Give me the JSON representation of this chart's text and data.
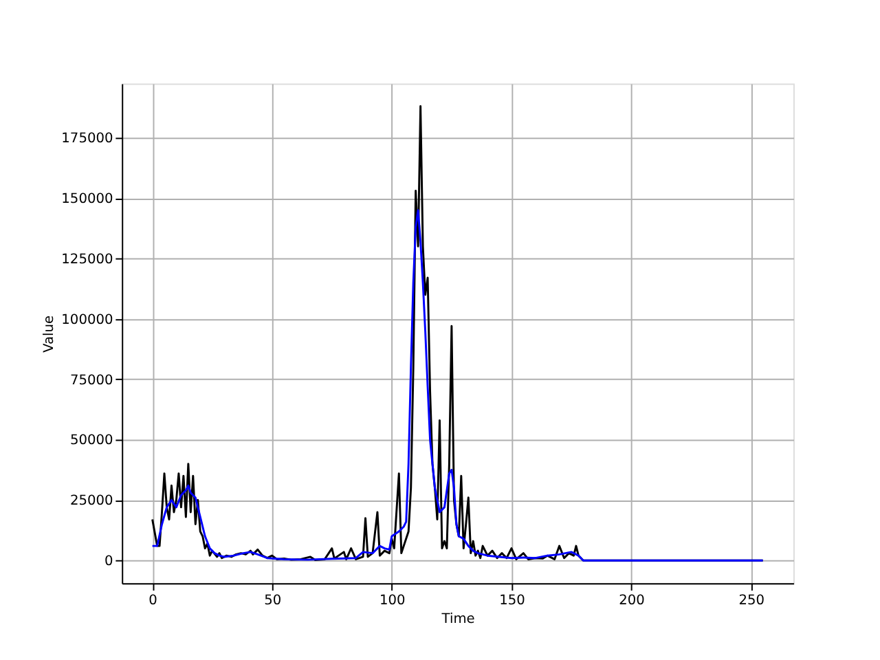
{
  "chart_data": {
    "type": "line",
    "xlabel": "Time",
    "ylabel": "Value",
    "xlim": [
      -12.75,
      267.75
    ],
    "ylim": [
      -9400,
      197400
    ],
    "xticks": [
      0,
      50,
      100,
      150,
      200,
      250
    ],
    "yticks": [
      0,
      25000,
      50000,
      75000,
      100000,
      125000,
      150000,
      175000
    ],
    "grid": true,
    "legend": false,
    "marker": "none",
    "line_style": "solid",
    "series": [
      {
        "color": "#000000",
        "x": [
          0,
          2,
          3,
          4,
          5,
          6,
          7,
          8,
          9,
          10,
          11,
          12,
          13,
          14,
          15,
          16,
          17,
          18,
          19,
          20,
          21,
          22,
          23,
          24,
          25,
          27,
          28,
          29,
          31,
          33,
          35,
          37,
          39,
          41,
          42,
          44,
          46,
          48,
          50,
          52,
          55,
          58,
          62,
          66,
          68,
          72,
          75,
          76,
          80,
          81,
          83,
          85,
          88,
          89,
          90,
          92,
          94,
          95,
          97,
          99,
          100,
          101,
          103,
          104,
          106,
          107,
          108,
          109,
          110,
          111,
          112,
          113,
          114,
          115,
          116,
          117,
          118,
          119,
          120,
          121,
          122,
          123,
          124,
          125,
          126,
          127,
          128,
          129,
          130,
          131,
          132,
          133,
          134,
          135,
          136,
          137,
          138,
          140,
          142,
          144,
          146,
          148,
          150,
          152,
          155,
          157,
          160,
          163,
          165,
          168,
          170,
          172,
          174,
          176,
          177,
          178,
          180,
          255
        ],
        "values": [
          17000,
          6000,
          6000,
          20000,
          36000,
          22000,
          17000,
          31000,
          20000,
          25000,
          36000,
          22000,
          35000,
          18000,
          40000,
          20000,
          35000,
          15000,
          25000,
          12000,
          10000,
          5000,
          7000,
          2000,
          4000,
          1500,
          3000,
          1000,
          2000,
          1500,
          2500,
          3000,
          2500,
          4000,
          2500,
          4500,
          2000,
          1000,
          2000,
          500,
          800,
          300,
          500,
          1500,
          200,
          500,
          5000,
          800,
          3500,
          500,
          5000,
          500,
          1500,
          17500,
          1500,
          3000,
          20000,
          2000,
          4000,
          3000,
          9000,
          5000,
          36000,
          3000,
          9000,
          12000,
          30000,
          80000,
          153000,
          130000,
          188000,
          130000,
          110000,
          117000,
          70000,
          40000,
          30000,
          17000,
          58000,
          5000,
          8000,
          5000,
          40000,
          97000,
          25000,
          15000,
          10000,
          35000,
          5000,
          15000,
          26000,
          3000,
          8000,
          2000,
          4000,
          1000,
          6000,
          2000,
          4000,
          1000,
          3000,
          1000,
          5000,
          500,
          3000,
          500,
          1000,
          800,
          2000,
          500,
          6000,
          1000,
          3000,
          2000,
          6000,
          2000,
          0,
          0
        ]
      },
      {
        "color": "#0000ff",
        "x": [
          0,
          2,
          4,
          6,
          8,
          10,
          12,
          14,
          15,
          16,
          18,
          20,
          22,
          24,
          26,
          28,
          30,
          34,
          38,
          41,
          44,
          48,
          55,
          65,
          75,
          85,
          88,
          92,
          95,
          97,
          99,
          100,
          103,
          105,
          106,
          107,
          108,
          109,
          110,
          111,
          112,
          113,
          114,
          115,
          116,
          118,
          120,
          122,
          124,
          125,
          126,
          127,
          128,
          130,
          132,
          134,
          136,
          140,
          145,
          150,
          155,
          160,
          165,
          170,
          175,
          178,
          180,
          255
        ],
        "values": [
          6000,
          6000,
          15000,
          22000,
          25000,
          22000,
          27000,
          29000,
          31000,
          28000,
          26000,
          18000,
          10000,
          5000,
          3000,
          2000,
          1500,
          2000,
          3000,
          3500,
          2500,
          1000,
          500,
          300,
          700,
          1000,
          3500,
          3000,
          6000,
          5000,
          4500,
          10000,
          12000,
          14000,
          16000,
          40000,
          80000,
          115000,
          138000,
          145000,
          132000,
          115000,
          95000,
          72000,
          50000,
          30000,
          20000,
          22000,
          36000,
          37500,
          30000,
          15000,
          10000,
          9000,
          6000,
          4000,
          3000,
          2000,
          1500,
          1000,
          1200,
          1000,
          2000,
          2500,
          3500,
          2000,
          0,
          0
        ]
      }
    ]
  }
}
